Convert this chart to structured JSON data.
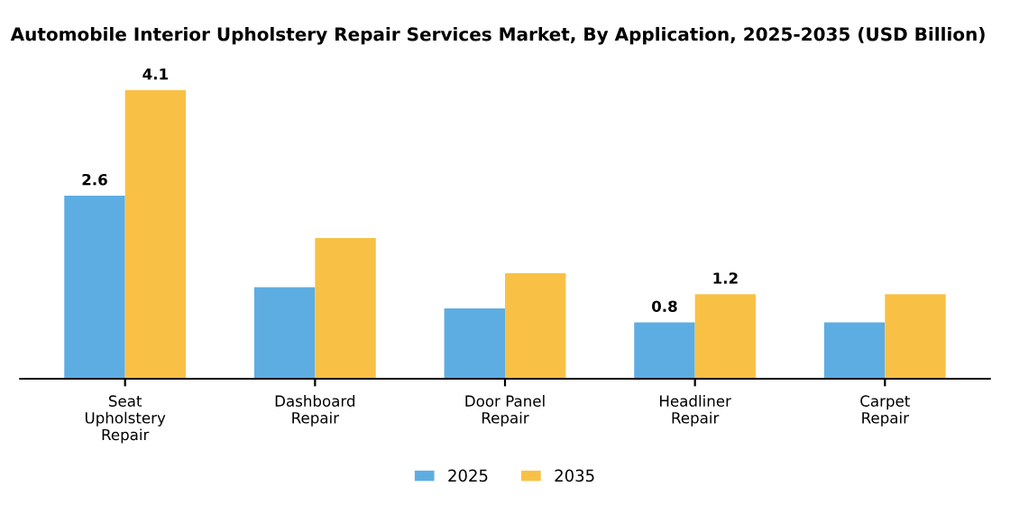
{
  "chart_data": {
    "type": "bar",
    "title": "Automobile Interior Upholstery Repair Services Market, By Application, 2025-2035 (USD Billion)",
    "categories": [
      "Seat\nUpholstery\nRepair",
      "Dashboard\nRepair",
      "Door Panel\nRepair",
      "Headliner\nRepair",
      "Carpet\nRepair"
    ],
    "series": [
      {
        "name": "2025",
        "color": "#5dade2",
        "values": [
          2.6,
          1.3,
          1.0,
          0.8,
          0.8
        ],
        "value_labels": [
          "2.6",
          null,
          null,
          "0.8",
          null
        ]
      },
      {
        "name": "2035",
        "color": "#f8c145",
        "values": [
          4.1,
          2.0,
          1.5,
          1.2,
          1.2
        ],
        "value_labels": [
          "4.1",
          null,
          null,
          "1.2",
          null
        ]
      }
    ],
    "legend": "bottom",
    "grid": false
  }
}
